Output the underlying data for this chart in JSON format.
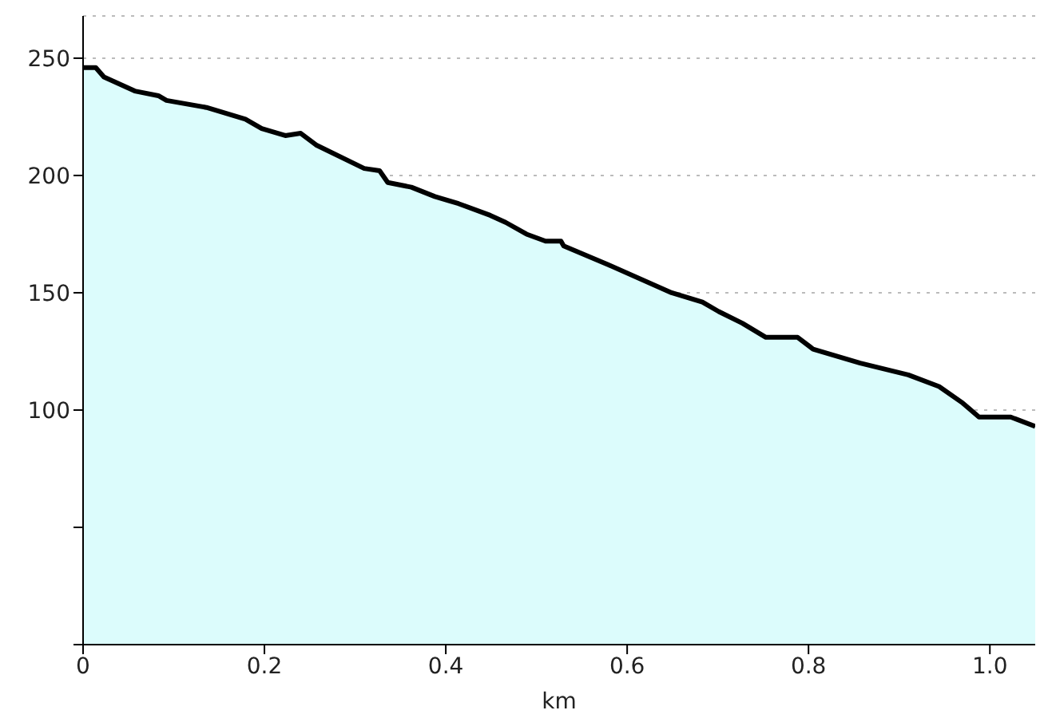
{
  "chart_data": {
    "type": "area",
    "xlabel": "km",
    "x": [
      0,
      0.014,
      0.023,
      0.04,
      0.057,
      0.083,
      0.092,
      0.136,
      0.179,
      0.197,
      0.223,
      0.24,
      0.257,
      0.31,
      0.327,
      0.336,
      0.362,
      0.388,
      0.414,
      0.449,
      0.466,
      0.489,
      0.51,
      0.527,
      0.53,
      0.579,
      0.649,
      0.683,
      0.701,
      0.727,
      0.753,
      0.788,
      0.805,
      0.857,
      0.91,
      0.944,
      0.97,
      0.988,
      1.023,
      1.05
    ],
    "series": [
      {
        "color": "#dcfcfc",
        "values": [
          246,
          246,
          242,
          239,
          236,
          234,
          232,
          229,
          224,
          220,
          217,
          218,
          213,
          203,
          202,
          197,
          195,
          191,
          188,
          183,
          180,
          175,
          172,
          172,
          170,
          162,
          150,
          146,
          142,
          137,
          131,
          131,
          126,
          120,
          115,
          110,
          103,
          97,
          97,
          93
        ]
      }
    ],
    "xlim": [
      0,
      1.05
    ],
    "xticks": [
      0,
      0.2,
      0.4,
      0.6,
      0.8,
      {
        "value": 1,
        "label": "1.0"
      }
    ],
    "ylim": [
      0,
      268
    ],
    "yticks": [
      {
        "value": 0,
        "label": null
      },
      {
        "value": 50,
        "label": null
      },
      100,
      150,
      200,
      250
    ],
    "grid": "y"
  }
}
